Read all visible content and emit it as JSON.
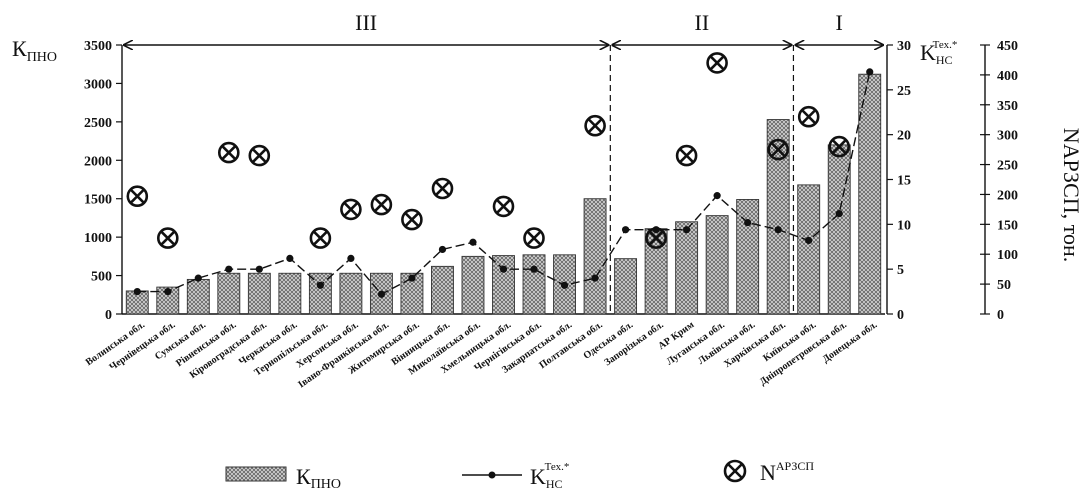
{
  "chart_data": {
    "type": "bar",
    "categories": [
      "Волинська обл.",
      "Чернівецька обл.",
      "Сумська обл.",
      "Рівненська обл.",
      "Кіровоградська обл.",
      "Черкаська обл.",
      "Тернопільська обл.",
      "Херсонська обл.",
      "Івано-Франківська обл.",
      "Житомирська обл.",
      "Вінницька обл.",
      "Миколаївська обл.",
      "Хмельницька обл.",
      "Чернігівська обл.",
      "Закарпатська обл.",
      "Полтавська обл.",
      "Одеська обл.",
      "Запорізька обл.",
      "АР Крим",
      "Луганська обл.",
      "Львівська обл.",
      "Харківська обл.",
      "Київська обл.",
      "Дніпропетровська обл.",
      "Донецька обл."
    ],
    "series": [
      {
        "name": "КПНО",
        "axis": "left",
        "values": [
          300,
          350,
          450,
          530,
          530,
          530,
          530,
          530,
          530,
          530,
          620,
          750,
          760,
          770,
          770,
          1500,
          720,
          1110,
          1200,
          1280,
          1490,
          2530,
          1680,
          2200,
          3120
        ]
      },
      {
        "name": "KНС Тех.*",
        "axis": "right1",
        "values": [
          2.5,
          2.5,
          4.0,
          5.0,
          5.0,
          6.2,
          3.2,
          6.2,
          2.2,
          4.0,
          7.2,
          8.0,
          5.0,
          5.0,
          3.2,
          4.0,
          9.4,
          9.4,
          9.4,
          13.2,
          10.2,
          9.4,
          8.2,
          11.2,
          27.0
        ]
      },
      {
        "name": "NАРЗСП",
        "axis": "right2",
        "values": [
          197,
          127,
          null,
          270,
          265,
          null,
          127,
          175,
          183,
          158,
          210,
          null,
          180,
          127,
          null,
          315,
          null,
          127,
          265,
          420,
          null,
          275,
          330,
          280,
          null
        ]
      }
    ],
    "axes": {
      "left": {
        "label": "КПНО",
        "ylim": [
          0,
          3500
        ],
        "ticks": [
          0,
          500,
          1000,
          1500,
          2000,
          2500,
          3000,
          3500
        ]
      },
      "right1": {
        "label": "KНС Тех.*",
        "ylim": [
          0,
          30
        ],
        "ticks": [
          0,
          5,
          10,
          15,
          20,
          25,
          30
        ]
      },
      "right2": {
        "label": "NАРЗСП, тон.",
        "ylim": [
          0,
          450
        ],
        "ticks": [
          0,
          50,
          100,
          150,
          200,
          250,
          300,
          350,
          400,
          450
        ]
      }
    },
    "regions": [
      {
        "label": "III",
        "from": 0,
        "to": 15
      },
      {
        "label": "II",
        "from": 16,
        "to": 21
      },
      {
        "label": "I",
        "from": 22,
        "to": 24
      }
    ],
    "legend": {
      "position": "bottom",
      "items": [
        {
          "symbol": "bar",
          "main": "К",
          "sub": "ПНО",
          "sup": ""
        },
        {
          "symbol": "line",
          "main": "K",
          "sub": "НС",
          "sup": "Тех.*"
        },
        {
          "symbol": "marker",
          "main": "N",
          "sub": "",
          "sup": "АРЗСП"
        }
      ]
    },
    "grid": false
  }
}
